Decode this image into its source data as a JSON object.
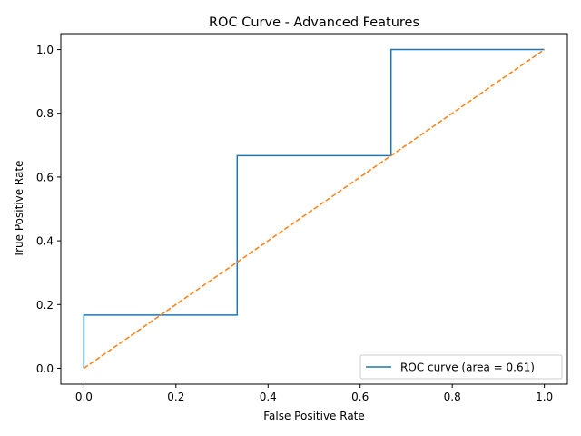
{
  "chart_data": {
    "type": "line",
    "title": "ROC Curve - Advanced Features",
    "xlabel": "False Positive Rate",
    "ylabel": "True Positive Rate",
    "xlim": [
      -0.05,
      1.05
    ],
    "ylim": [
      -0.05,
      1.05
    ],
    "xticks": [
      "0.0",
      "0.2",
      "0.4",
      "0.6",
      "0.8",
      "1.0"
    ],
    "yticks": [
      "0.0",
      "0.2",
      "0.4",
      "0.6",
      "0.8",
      "1.0"
    ],
    "grid": false,
    "legend_position": "lower-right",
    "series": [
      {
        "name": "ROC curve (area = 0.61)",
        "color": "#1f77b4",
        "style": "step",
        "x": [
          0.0,
          0.0,
          0.333,
          0.333,
          0.667,
          0.667,
          1.0
        ],
        "y": [
          0.0,
          0.167,
          0.167,
          0.667,
          0.667,
          1.0,
          1.0
        ]
      },
      {
        "color": "#ff7f0e",
        "style": "dashed",
        "x": [
          0.0,
          1.0
        ],
        "y": [
          0.0,
          1.0
        ]
      }
    ]
  }
}
